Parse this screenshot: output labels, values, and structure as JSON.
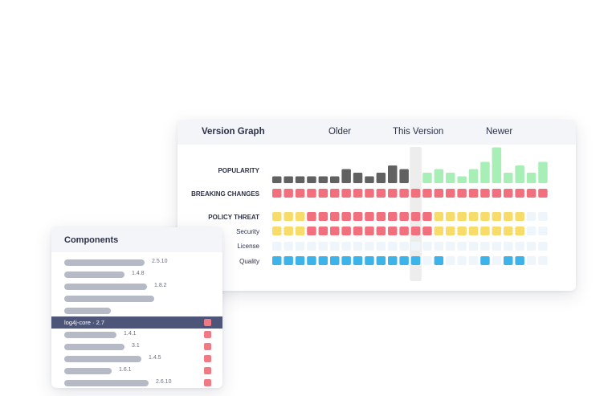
{
  "graph": {
    "title": "Version Graph",
    "older_label": "Older",
    "this_version_label": "This Version",
    "newer_label": "Newer",
    "rows": {
      "popularity": "POPULARITY",
      "breaking": "BREAKING CHANGES",
      "policy": "POLICY THREAT",
      "security": "Security",
      "license": "License",
      "quality": "Quality"
    },
    "colors": {
      "older_bar": "#616161",
      "newer_bar": "#a8efb7",
      "red": "#f2707e",
      "yellow": "#f8dc6a",
      "blue": "#3cb4ea",
      "empty": "#eef5fb",
      "highlight": "#ededed"
    },
    "popularity_levels": [
      1,
      1,
      1,
      1,
      1,
      1,
      3,
      2,
      1,
      2,
      4,
      3,
      0,
      2,
      3,
      2,
      1,
      3,
      5,
      9,
      2,
      4,
      2,
      5
    ],
    "current_index": 12,
    "breaking": [
      "r",
      "r",
      "r",
      "r",
      "r",
      "r",
      "r",
      "r",
      "r",
      "r",
      "r",
      "r",
      "r",
      "r",
      "r",
      "r",
      "r",
      "r",
      "r",
      "r",
      "r",
      "r",
      "r",
      "r"
    ],
    "policy": [
      "y",
      "y",
      "y",
      "r",
      "r",
      "r",
      "r",
      "r",
      "r",
      "r",
      "r",
      "r",
      "r",
      "r",
      "y",
      "y",
      "y",
      "y",
      "y",
      "y",
      "y",
      "y",
      "e",
      "e"
    ],
    "security": [
      "y",
      "y",
      "y",
      "r",
      "r",
      "r",
      "r",
      "r",
      "r",
      "r",
      "r",
      "r",
      "r",
      "r",
      "y",
      "y",
      "y",
      "y",
      "y",
      "y",
      "y",
      "y",
      "e",
      "e"
    ],
    "license": [
      "e",
      "e",
      "e",
      "e",
      "e",
      "e",
      "e",
      "e",
      "e",
      "e",
      "e",
      "e",
      "e",
      "e",
      "e",
      "e",
      "e",
      "e",
      "e",
      "e",
      "e",
      "e",
      "e",
      "e"
    ],
    "quality": [
      "b",
      "b",
      "b",
      "b",
      "b",
      "b",
      "b",
      "b",
      "b",
      "b",
      "b",
      "b",
      "b",
      "e",
      "b",
      "e",
      "e",
      "e",
      "b",
      "e",
      "b",
      "b",
      "e",
      "e"
    ]
  },
  "components": {
    "title": "Components",
    "items": [
      {
        "version": "2.5.10",
        "bar": 100,
        "flag": false
      },
      {
        "version": "1.4.8",
        "bar": 75,
        "flag": false
      },
      {
        "version": "1.8.2",
        "bar": 103,
        "flag": false
      },
      {
        "version": "",
        "bar": 112,
        "flag": false
      },
      {
        "version": "",
        "bar": 58,
        "flag": false
      },
      {
        "name": "log4j-core",
        "version": "2.7",
        "selected": true,
        "flag": true
      },
      {
        "version": "1.4.1",
        "bar": 65,
        "flag": true
      },
      {
        "version": "3.1",
        "bar": 75,
        "flag": true
      },
      {
        "version": "1.4.5",
        "bar": 96,
        "flag": true
      },
      {
        "version": "1.6.1",
        "bar": 59,
        "flag": true
      },
      {
        "version": "2.6.10",
        "bar": 105,
        "flag": true
      }
    ]
  }
}
